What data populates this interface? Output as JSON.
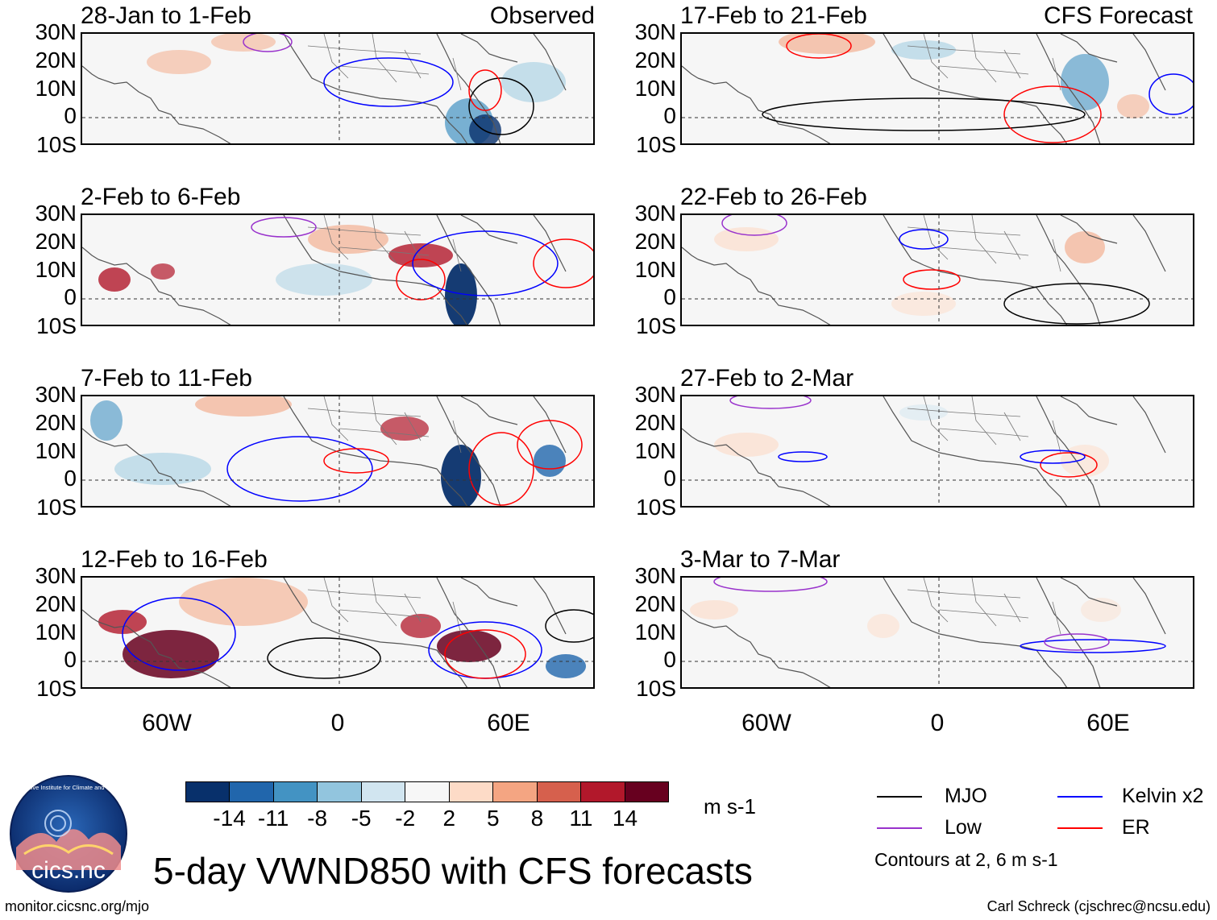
{
  "figure": {
    "title": "5-day VWND850 with CFS forecasts",
    "website": "monitor.cicsnc.org/mjo",
    "credit": "Carl Schreck (cjschrec@ncsu.edu)",
    "logo_text": "cics.nc",
    "logo_ring_text": "Cooperative Institute for Climate and Satellites"
  },
  "headers": {
    "observed": "Observed",
    "forecast": "CFS Forecast"
  },
  "panels": [
    {
      "title": "28-Jan to 1-Feb",
      "kind": "observed"
    },
    {
      "title": "2-Feb to 6-Feb",
      "kind": "observed"
    },
    {
      "title": "7-Feb to 11-Feb",
      "kind": "observed"
    },
    {
      "title": "12-Feb to 16-Feb",
      "kind": "observed"
    },
    {
      "title": "17-Feb to 21-Feb",
      "kind": "forecast"
    },
    {
      "title": "22-Feb to 26-Feb",
      "kind": "forecast"
    },
    {
      "title": "27-Feb to 2-Mar",
      "kind": "forecast"
    },
    {
      "title": "3-Mar to 7-Mar",
      "kind": "forecast"
    }
  ],
  "lat_labels": [
    "30N",
    "20N",
    "10N",
    "0",
    "10S"
  ],
  "lon_labels": [
    "60W",
    "0",
    "60E"
  ],
  "colorbar": {
    "units": "m s-1",
    "ticks": [
      "-14",
      "-11",
      "-8",
      "-5",
      "-2",
      "2",
      "5",
      "8",
      "11",
      "14"
    ],
    "colors": [
      "#08306b",
      "#2166ac",
      "#4393c3",
      "#92c5de",
      "#d1e5f0",
      "#f7f7f7",
      "#fddbc7",
      "#f4a582",
      "#d6604d",
      "#b2182b",
      "#67001f"
    ]
  },
  "legend": {
    "items": [
      {
        "label": "MJO",
        "color": "#000000"
      },
      {
        "label": "Kelvin x2",
        "color": "#0000ff"
      },
      {
        "label": "Low",
        "color": "#9932cc"
      },
      {
        "label": "ER",
        "color": "#ff0000"
      }
    ],
    "note": "Contours at 2, 6 m s-1"
  }
}
